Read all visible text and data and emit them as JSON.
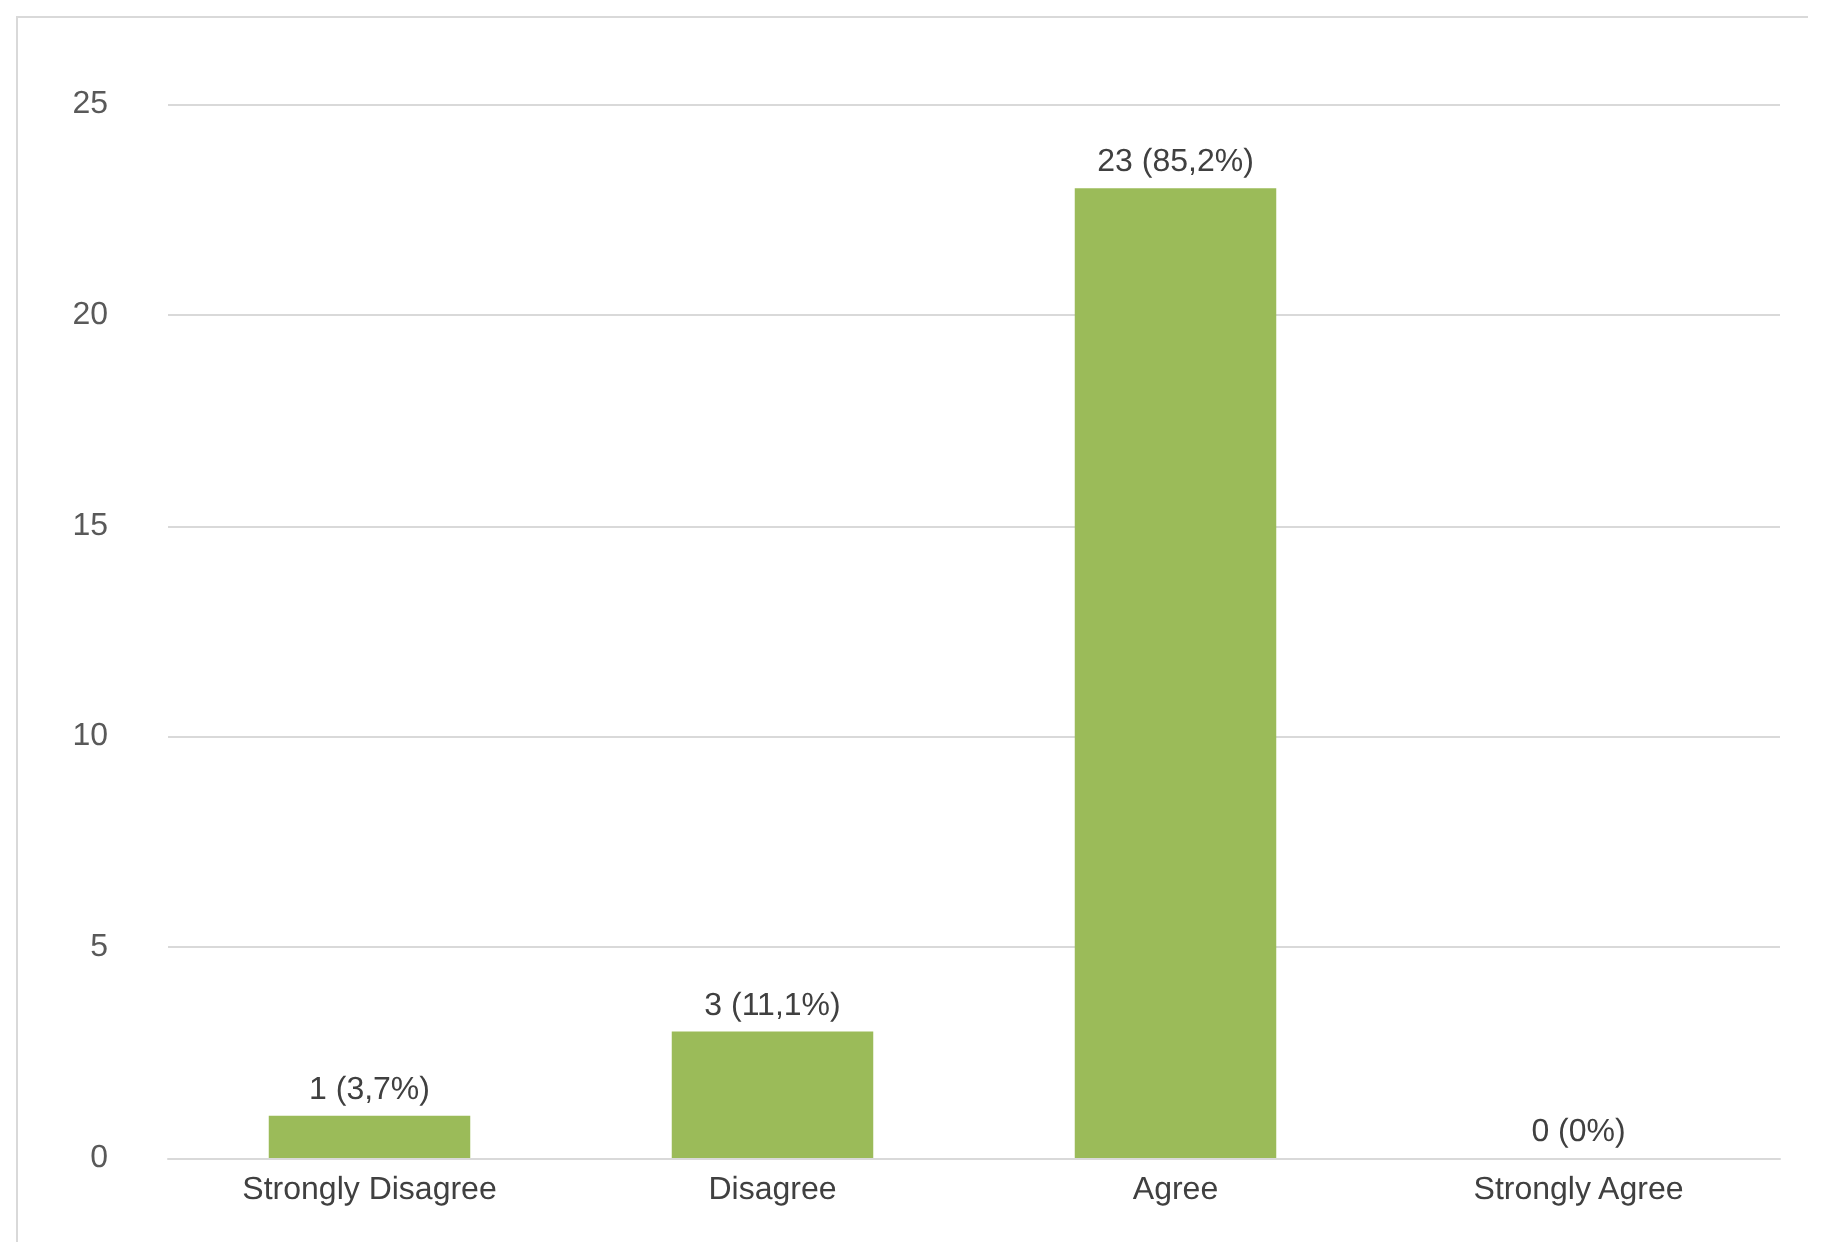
{
  "chart_data": {
    "type": "bar",
    "categories": [
      "Strongly Disagree",
      "Disagree",
      "Agree",
      "Strongly Agree"
    ],
    "values": [
      1,
      3,
      23,
      0
    ],
    "value_labels": [
      "1 (3,7%)",
      "3 (11,1%)",
      "23 (85,2%)",
      "0 (0%)"
    ],
    "color": "#9bbb59",
    "ylim": [
      0,
      25
    ],
    "yticks": [
      0,
      5,
      10,
      15,
      20,
      25
    ],
    "grid": "y"
  }
}
